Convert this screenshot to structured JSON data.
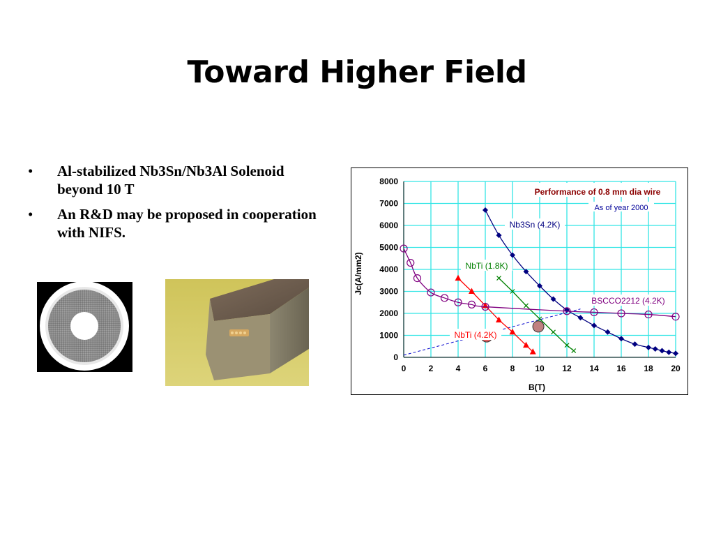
{
  "slide": {
    "title": "Toward Higher Field",
    "bullets": [
      {
        "text": "Al-stabilized Nb3Sn/Nb3Al Solenoid beyond 10 T"
      },
      {
        "text": "An R&D may be proposed in cooperation with NIFS."
      }
    ]
  },
  "images": {
    "ring": "wire-cross-section-photo",
    "bar": "conductor-sample-photo"
  },
  "chart_data": {
    "type": "scatter",
    "title": "Performance of 0.8 mm dia wire",
    "subtitle": "As of year 2000",
    "xlabel": "B(T)",
    "ylabel": "Jc(A/mm2)",
    "xlim": [
      0,
      20
    ],
    "ylim": [
      0,
      8000
    ],
    "xticks": [
      0,
      2,
      4,
      6,
      8,
      10,
      12,
      14,
      16,
      18,
      20
    ],
    "yticks": [
      0,
      1000,
      2000,
      3000,
      4000,
      5000,
      6000,
      7000,
      8000
    ],
    "grid": true,
    "colors": {
      "grid": "#33e5e5",
      "title": "#8b0000",
      "subtitle": "#000099"
    },
    "series": [
      {
        "name": "Nb3Sn (4.2K)",
        "color": "#000080",
        "marker": "diamond",
        "x": [
          6,
          7,
          8,
          9,
          10,
          11,
          12,
          13,
          14,
          15,
          16,
          17,
          18,
          18.5,
          19,
          19.5,
          20
        ],
        "y": [
          6700,
          5550,
          4650,
          3900,
          3250,
          2650,
          2150,
          1800,
          1450,
          1150,
          850,
          600,
          450,
          380,
          300,
          230,
          180
        ]
      },
      {
        "name": "NbTi (1.8K)",
        "color": "#008000",
        "marker": "x",
        "x": [
          7,
          8,
          9,
          10,
          11,
          12,
          12.5
        ],
        "y": [
          3600,
          3000,
          2350,
          1750,
          1150,
          550,
          300
        ]
      },
      {
        "name": "NbTi (4.2K)",
        "color": "#ff0000",
        "marker": "triangle",
        "x": [
          4,
          5,
          6,
          7,
          8,
          9,
          9.5
        ],
        "y": [
          3600,
          3000,
          2350,
          1700,
          1150,
          550,
          250
        ]
      },
      {
        "name": "BSCCO2212 (4.2K)",
        "color": "#800080",
        "marker": "circle",
        "x": [
          0,
          0.5,
          1,
          2,
          3,
          4,
          5,
          6,
          12,
          14,
          16,
          18,
          20
        ],
        "y": [
          4950,
          4300,
          3600,
          2950,
          2700,
          2500,
          2400,
          2300,
          2100,
          2050,
          2000,
          1950,
          1850
        ]
      }
    ],
    "annotations": [
      {
        "kind": "dashed-line",
        "color": "#0000cc",
        "x": [
          0,
          13
        ],
        "y": [
          100,
          2200
        ]
      },
      {
        "kind": "highlight-point",
        "color": "#e06060",
        "x": 6.1,
        "y": 950
      },
      {
        "kind": "highlight-point",
        "color": "#c08080",
        "x": 9.9,
        "y": 1400
      }
    ]
  }
}
